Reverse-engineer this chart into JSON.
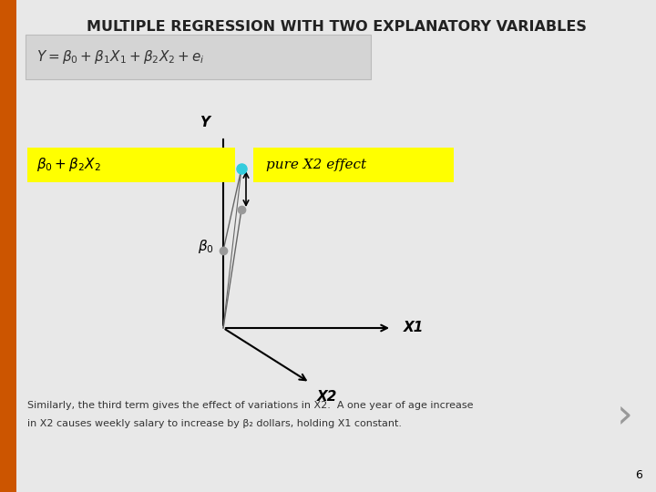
{
  "title": "MULTIPLE REGRESSION WITH TWO EXPLANATORY VARIABLES",
  "title_fontsize": 11.5,
  "slide_bg": "#e8e8e8",
  "formula_box_color": "#d4d4d4",
  "yellow_bg": "#ffff00",
  "label_beta0_b2x2": "β₀ + β₂X₂",
  "label_pure_x2": "pure X2 effect",
  "label_beta0": "β₀",
  "label_Y": "Y",
  "label_X2": "X2",
  "label_X1": "X1",
  "bottom_text_line1": "Similarly, the third term gives the effect of variations in X2.  A one year of age increase",
  "bottom_text_line2": "in X2 causes weekly salary to increase by β₂ dollars, holding X1 constant.",
  "page_number": "6",
  "orange_bar_color": "#cc5500"
}
